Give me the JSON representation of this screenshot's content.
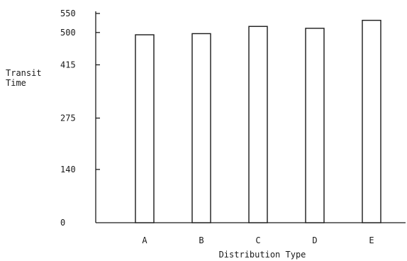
{
  "chart_data": {
    "type": "bar",
    "categories": [
      "A",
      "B",
      "C",
      "D",
      "E"
    ],
    "values": [
      494,
      497,
      516,
      511,
      532
    ],
    "title": "",
    "xlabel": "Distribution Type",
    "ylabel": [
      "Transit",
      "Time"
    ],
    "ylim": [
      0,
      550
    ],
    "yticks": [
      0,
      140,
      275,
      415,
      500,
      550
    ],
    "grid": false,
    "legend": "none"
  }
}
